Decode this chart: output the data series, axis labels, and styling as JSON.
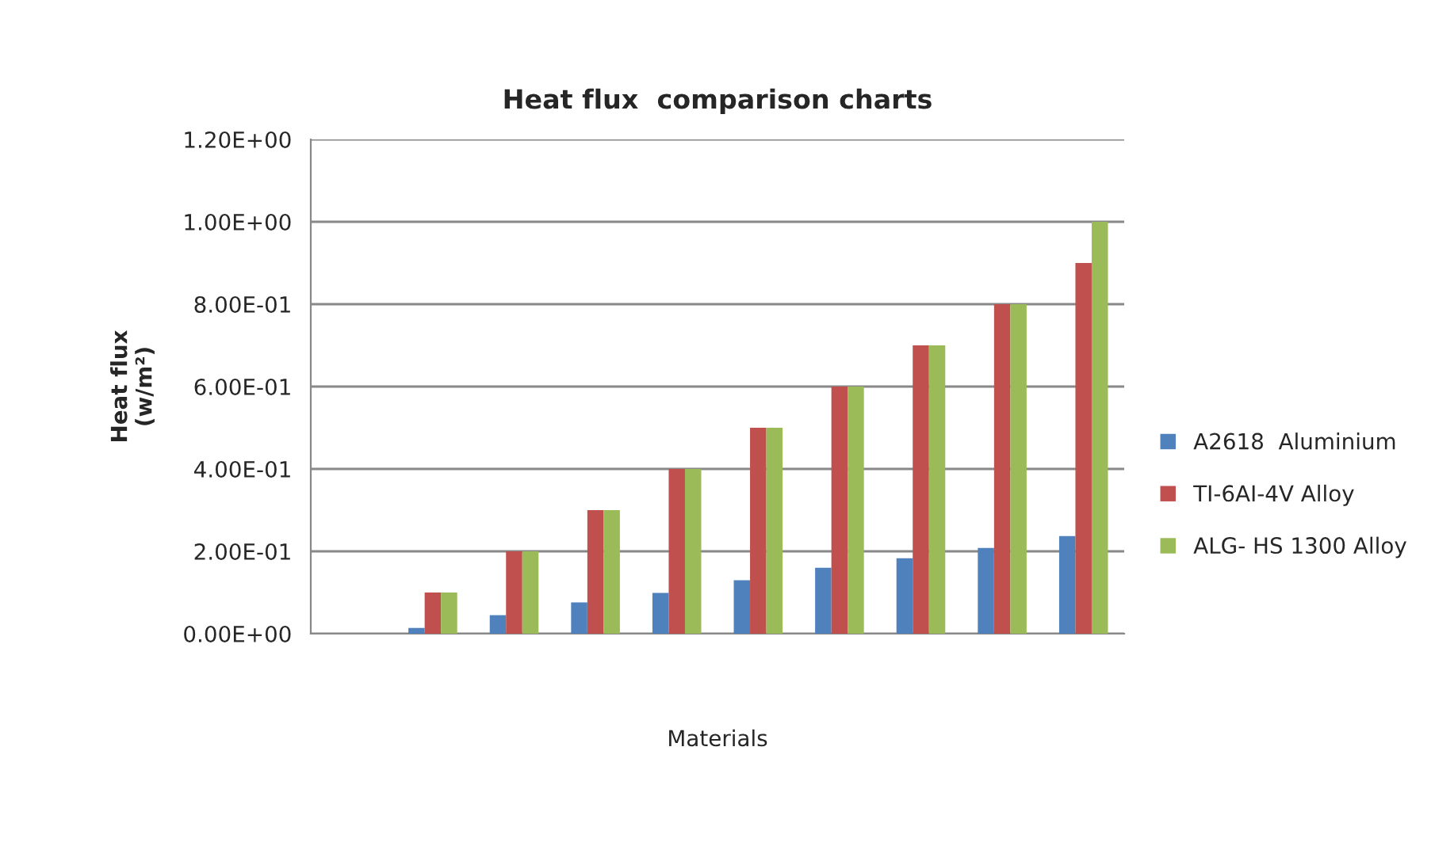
{
  "chart_data": {
    "type": "bar",
    "title": "Heat flux  comparison charts",
    "xlabel": "Materials",
    "ylabel": "Heat flux\n(w/m²)",
    "categories": [
      null,
      null,
      null,
      null,
      null,
      null,
      null,
      null,
      null,
      null
    ],
    "series": [
      {
        "name": "A2618  Aluminium",
        "color": "#4f81bd",
        "values": [
          null,
          0.014,
          0.045,
          0.076,
          0.099,
          0.13,
          0.16,
          0.183,
          0.208,
          0.237
        ]
      },
      {
        "name": "TI-6AI-4V Alloy",
        "color": "#c0504d",
        "values": [
          null,
          0.1,
          0.2,
          0.3,
          0.4,
          0.5,
          0.6,
          0.7,
          0.8,
          0.9
        ]
      },
      {
        "name": "ALG- HS 1300 Alloy",
        "color": "#9bbb59",
        "values": [
          null,
          0.1,
          0.2,
          0.3,
          0.4,
          0.5,
          0.6,
          0.7,
          0.8,
          1.0
        ]
      }
    ],
    "ylim": [
      0,
      1.2
    ],
    "yticks": [
      {
        "value": 0,
        "label": "0.00E+00"
      },
      {
        "value": 0.2,
        "label": "2.00E-01"
      },
      {
        "value": 0.4,
        "label": "4.00E-01"
      },
      {
        "value": 0.6,
        "label": "6.00E-01"
      },
      {
        "value": 0.8,
        "label": "8.00E-01"
      },
      {
        "value": 1.0,
        "label": "1.00E+00"
      },
      {
        "value": 1.2,
        "label": "1.20E+00"
      }
    ],
    "grid": "y",
    "legend": "right"
  }
}
